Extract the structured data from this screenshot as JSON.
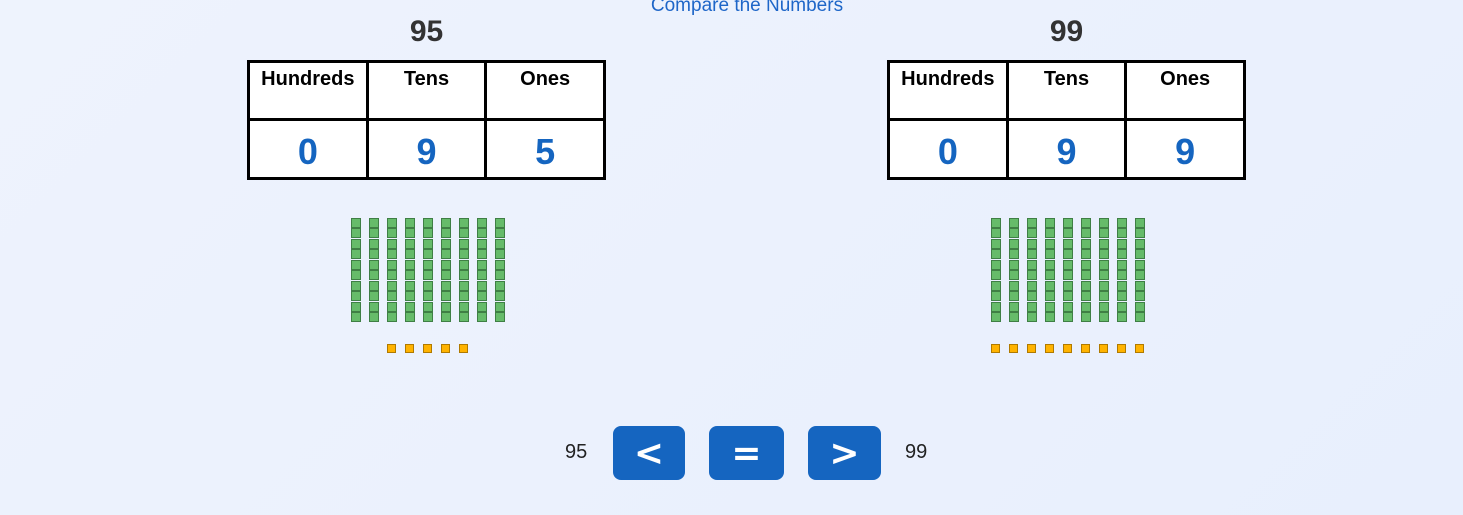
{
  "title": "Compare the Numbers",
  "headers": [
    "Hundreds",
    "Tens",
    "Ones"
  ],
  "left": {
    "number": "95",
    "digits": [
      "0",
      "9",
      "5"
    ],
    "tens": 9,
    "ones": 5
  },
  "right": {
    "number": "99",
    "digits": [
      "0",
      "9",
      "9"
    ],
    "tens": 9,
    "ones": 9
  },
  "buttons": {
    "less": "<",
    "equal": "=",
    "greater": ">"
  },
  "compare": {
    "left": "95",
    "right": "99"
  },
  "colors": {
    "accent": "#1565c0",
    "tens_block": "#66bb6a",
    "ones_block": "#ffb300"
  }
}
